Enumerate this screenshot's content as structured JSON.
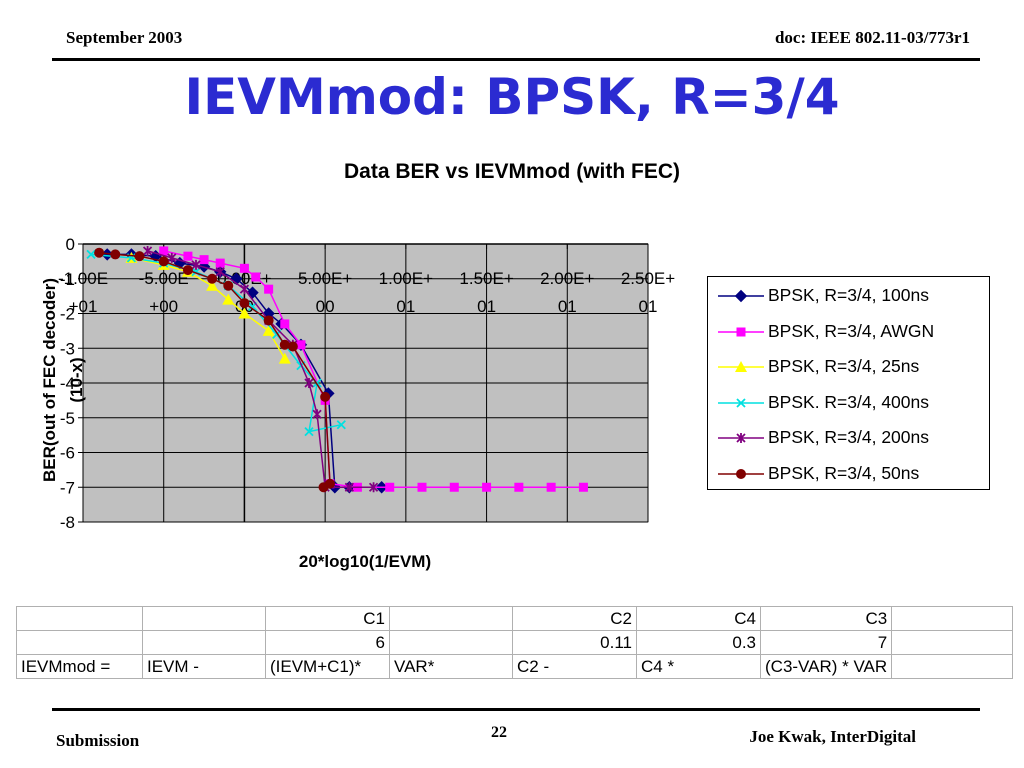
{
  "header": {
    "date": "September 2003",
    "doc": "doc: IEEE 802.11-03/773r1"
  },
  "slide_title": "IEVMmod: BPSK, R=3/4",
  "footer": {
    "left": "Submission",
    "page": "22",
    "right": "Joe Kwak, InterDigital"
  },
  "colors": {
    "title": "#2b2bd1",
    "plot_bg": "#c0c0c0"
  },
  "chart_data": {
    "type": "line",
    "title": "Data BER vs IEVMmod (with FEC)",
    "xlabel": "20*log10(1/EVM)",
    "ylabel": "BER(out of FEC decoder) (10-x)",
    "xlim": [
      -10,
      25
    ],
    "ylim": [
      -8,
      0
    ],
    "x_tick_values": [
      -10,
      -5,
      0,
      5,
      10,
      15,
      20,
      25
    ],
    "x_tick_labels": [
      [
        "-1.00E",
        "+01"
      ],
      [
        "-5.00E",
        "+00"
      ],
      [
        "0.00E+",
        "00"
      ],
      [
        "5.00E+",
        "00"
      ],
      [
        "1.00E+",
        "01"
      ],
      [
        "1.50E+",
        "01"
      ],
      [
        "2.00E+",
        "01"
      ],
      [
        "2.50E+",
        "01"
      ]
    ],
    "y_ticks": [
      0,
      -1,
      -2,
      -3,
      -4,
      -5,
      -6,
      -7,
      -8
    ],
    "grid": true,
    "legend_position": "right",
    "series": [
      {
        "name": "BPSK, R=3/4, 100ns",
        "color": "#000080",
        "marker": "diamond",
        "points": [
          [
            -8.5,
            -0.3
          ],
          [
            -7,
            -0.3
          ],
          [
            -5.5,
            -0.35
          ],
          [
            -4,
            -0.55
          ],
          [
            -2.5,
            -0.65
          ],
          [
            -1.5,
            -0.8
          ],
          [
            -0.5,
            -1.0
          ],
          [
            0.5,
            -1.4
          ],
          [
            1.5,
            -2.0
          ],
          [
            2.3,
            -2.3
          ],
          [
            3.5,
            -2.9
          ],
          [
            5.2,
            -4.3
          ],
          [
            5.6,
            -7.0
          ],
          [
            6.5,
            -7.0
          ],
          [
            8.5,
            -7.0
          ]
        ]
      },
      {
        "name": "BPSK, R=3/4, AWGN",
        "color": "#ff00ff",
        "marker": "square",
        "points": [
          [
            -5,
            -0.2
          ],
          [
            -3.5,
            -0.35
          ],
          [
            -2.5,
            -0.45
          ],
          [
            -1.5,
            -0.55
          ],
          [
            0,
            -0.7
          ],
          [
            0.7,
            -0.95
          ],
          [
            1.5,
            -1.3
          ],
          [
            2.5,
            -2.3
          ],
          [
            3.5,
            -2.9
          ],
          [
            5,
            -4.5
          ],
          [
            5.3,
            -6.9
          ],
          [
            7,
            -7.0
          ],
          [
            9,
            -7.0
          ],
          [
            11,
            -7.0
          ],
          [
            13,
            -7.0
          ],
          [
            15,
            -7.0
          ],
          [
            17,
            -7.0
          ],
          [
            19,
            -7.0
          ],
          [
            21,
            -7.0
          ]
        ]
      },
      {
        "name": "BPSK, R=3/4, 25ns",
        "color": "#ffff00",
        "marker": "triangle",
        "points": [
          [
            -7,
            -0.4
          ],
          [
            -5,
            -0.6
          ],
          [
            -3.5,
            -0.8
          ],
          [
            -2,
            -1.2
          ],
          [
            -1,
            -1.6
          ],
          [
            0,
            -2.0
          ],
          [
            1.5,
            -2.5
          ],
          [
            2.5,
            -3.3
          ]
        ]
      },
      {
        "name": "BPSK. R=3/4, 400ns",
        "color": "#00e0e0",
        "marker": "x",
        "points": [
          [
            -9.5,
            -0.3
          ],
          [
            -7,
            -0.4
          ],
          [
            -5,
            -0.55
          ],
          [
            -3,
            -0.8
          ],
          [
            -1,
            -1.2
          ],
          [
            0.5,
            -1.8
          ],
          [
            2,
            -2.6
          ],
          [
            3.5,
            -3.5
          ],
          [
            4.5,
            -4.0
          ],
          [
            4,
            -5.4
          ],
          [
            6,
            -5.2
          ]
        ]
      },
      {
        "name": "BPSK, R=3/4, 200ns",
        "color": "#800080",
        "marker": "star",
        "points": [
          [
            -6,
            -0.2
          ],
          [
            -4.5,
            -0.4
          ],
          [
            -3,
            -0.6
          ],
          [
            -1.5,
            -0.8
          ],
          [
            0,
            -1.3
          ],
          [
            1.5,
            -2.2
          ],
          [
            3,
            -2.9
          ],
          [
            4,
            -4.0
          ],
          [
            4.5,
            -4.9
          ],
          [
            5,
            -7.0
          ],
          [
            6.5,
            -7.0
          ],
          [
            8,
            -7.0
          ]
        ]
      },
      {
        "name": "BPSK, R=3/4, 50ns",
        "color": "#800000",
        "marker": "circle",
        "points": [
          [
            -9,
            -0.25
          ],
          [
            -8,
            -0.3
          ],
          [
            -6.5,
            -0.35
          ],
          [
            -5,
            -0.5
          ],
          [
            -3.5,
            -0.75
          ],
          [
            -2,
            -1.0
          ],
          [
            -1,
            -1.2
          ],
          [
            0,
            -1.7
          ],
          [
            1.5,
            -2.2
          ],
          [
            2.5,
            -2.9
          ],
          [
            3,
            -2.95
          ],
          [
            5,
            -4.4
          ],
          [
            5.3,
            -6.9
          ],
          [
            4.9,
            -7.0
          ]
        ]
      }
    ]
  },
  "table": {
    "rows": [
      [
        "",
        "",
        "C1",
        "",
        "C2",
        "C4",
        "C3",
        ""
      ],
      [
        "",
        "",
        "6",
        "",
        "0.11",
        "0.3",
        "7",
        ""
      ],
      [
        "IEVMmod =",
        "IEVM  -",
        "(IEVM+C1)*",
        "VAR*",
        "C2   -",
        "C4   *",
        "(C3-VAR) * VAR",
        ""
      ]
    ]
  }
}
